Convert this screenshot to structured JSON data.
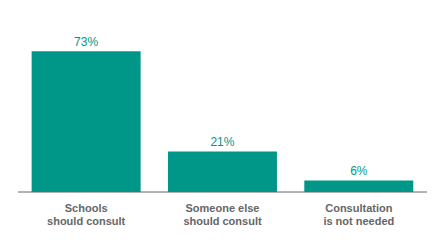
{
  "chart_data": {
    "type": "bar",
    "categories": [
      "Schools should consult",
      "Someone else should consult",
      "Consultation is not needed"
    ],
    "values": [
      73,
      21,
      6
    ],
    "value_labels": [
      "73%",
      "21%",
      "6%"
    ],
    "color": "#009688",
    "ylim": [
      0,
      85
    ],
    "data_labels": true,
    "tick_labels": "x",
    "grid": false
  }
}
